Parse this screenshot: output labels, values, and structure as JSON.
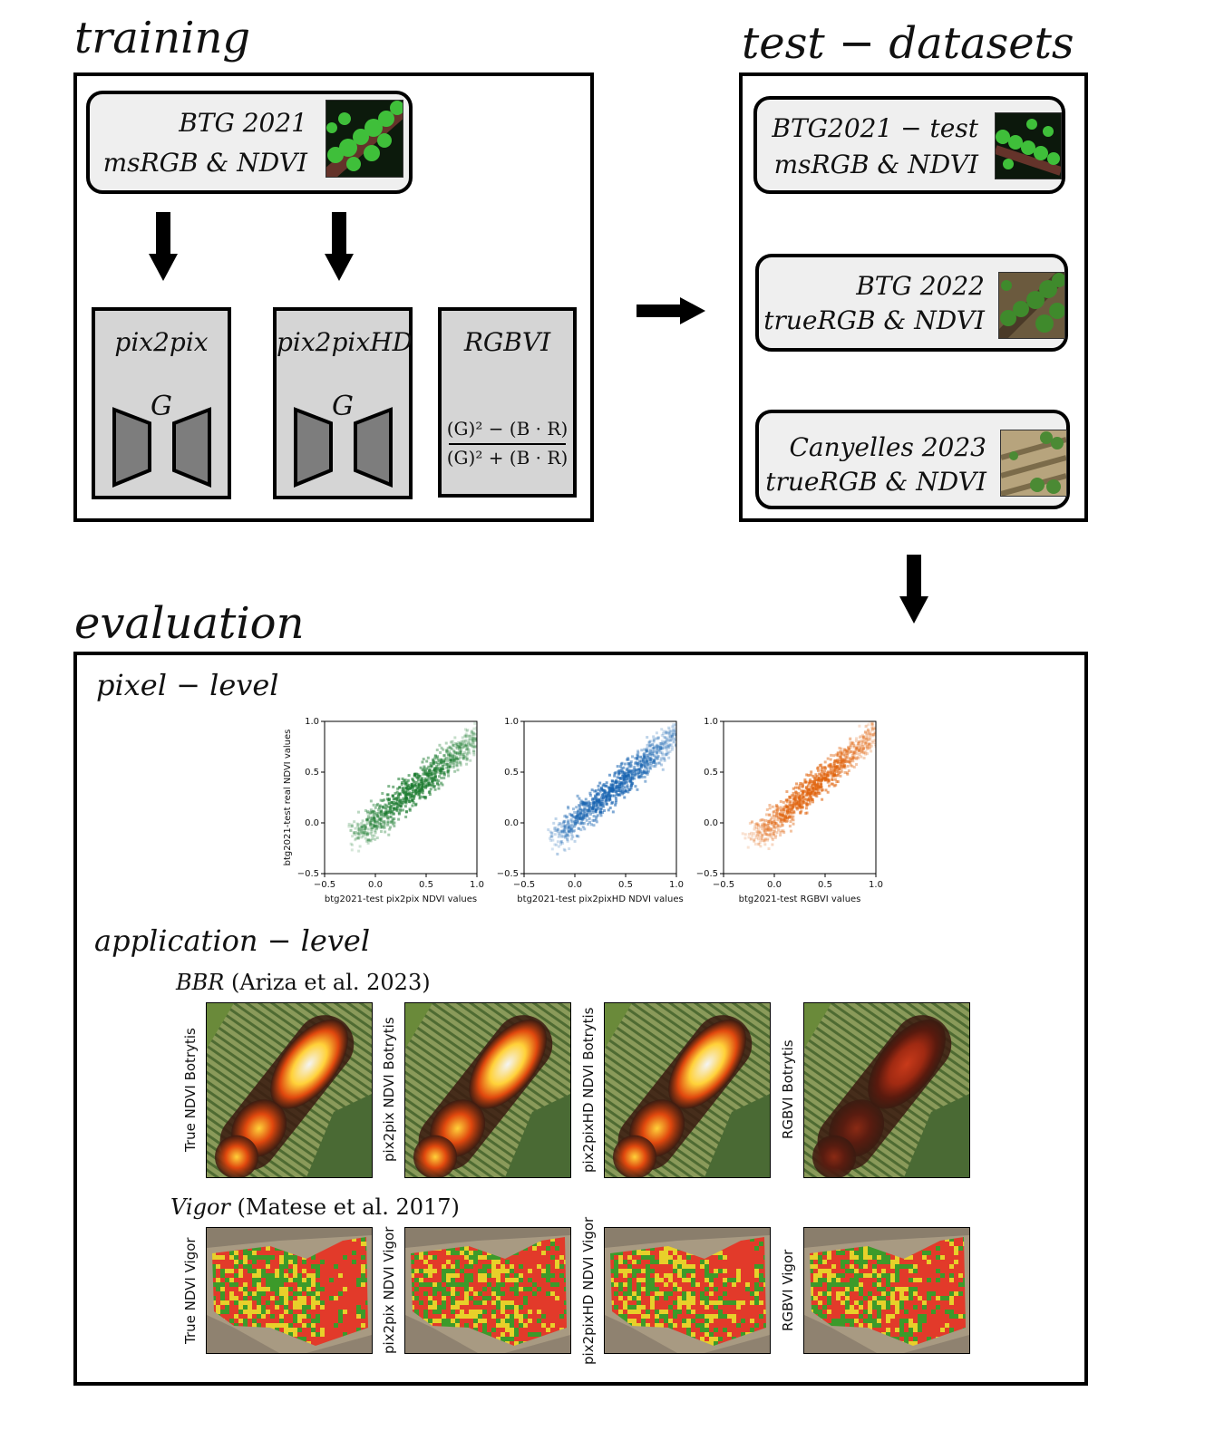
{
  "training": {
    "title": "training",
    "dataset": {
      "line1": "BTG 2021",
      "line2": "msRGB & NDVI",
      "thumb_icon": "vineyard-msrgb-thumbnail"
    },
    "models": [
      {
        "name": "pix2pix",
        "generator": "G"
      },
      {
        "name": "pix2pixHD",
        "generator": "G"
      },
      {
        "name": "RGBVI",
        "formula_num": "(G)² − (B · R)",
        "formula_den": "(G)² + (B · R)"
      }
    ]
  },
  "test": {
    "title": "test − datasets",
    "datasets": [
      {
        "line1": "BTG2021 − test",
        "line2": "msRGB & NDVI"
      },
      {
        "line1": "BTG 2022",
        "line2": "trueRGB & NDVI"
      },
      {
        "line1": "Canyelles 2023",
        "line2": "trueRGB & NDVI"
      }
    ]
  },
  "evaluation": {
    "title": "evaluation",
    "pixel_level": {
      "title": "pixel − level",
      "ylabel": "btg2021-test real NDVI values",
      "plots": [
        {
          "xlabel": "btg2021-test pix2pix NDVI values",
          "color": "#1a7a2e",
          "spread": 0.55
        },
        {
          "xlabel": "btg2021-test pix2pixHD NDVI values",
          "color": "#1763b0",
          "spread": 0.45
        },
        {
          "xlabel": "btg2021-test RGBVI values",
          "color": "#e0640e",
          "spread": 0.35
        }
      ],
      "xticks": [
        "−0.5",
        "0.0",
        "0.5",
        "1.0"
      ],
      "yticks": [
        "−0.5",
        "0.0",
        "0.5",
        "1.0"
      ]
    },
    "application_level": {
      "title": "application − level",
      "bbr": {
        "ref_name": "BBR",
        "ref_cite": "(Ariza et al. 2023)",
        "labels": [
          "True NDVI Botrytis",
          "pix2pix NDVI Botrytis",
          "pix2pixHD NDVI Botrytis",
          "RGBVI Botrytis"
        ]
      },
      "vigor": {
        "ref_name": "Vigor",
        "ref_cite": "(Matese et al. 2017)",
        "labels": [
          "True NDVI Vigor",
          "pix2pix NDVI Vigor",
          "pix2pixHD NDVI Vigor",
          "RGBVI Vigor"
        ]
      }
    }
  }
}
